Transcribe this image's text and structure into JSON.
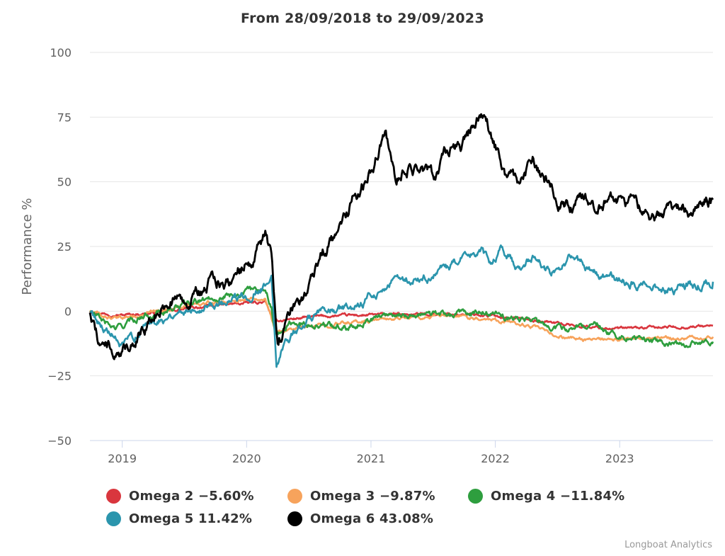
{
  "chart_data": {
    "type": "line",
    "title": "From 28/09/2018 to 29/09/2023",
    "xlabel": "",
    "ylabel": "Performance %",
    "ylim": [
      -50,
      100
    ],
    "yticks": [
      100,
      75,
      50,
      25,
      0,
      -25,
      -50
    ],
    "ytick_labels": [
      "100",
      "75",
      "50",
      "25",
      "0",
      "−25",
      "−50"
    ],
    "xlim": [
      2018.74,
      2023.75
    ],
    "xticks": [
      2019,
      2020,
      2021,
      2022,
      2023
    ],
    "xtick_labels": [
      "2019",
      "2020",
      "2021",
      "2022",
      "2023"
    ],
    "legend_position": "bottom",
    "series": [
      {
        "name": "Omega 2",
        "label": "Omega 2 −5.60%",
        "color": "#d9363e",
        "points": [
          [
            2018.74,
            0
          ],
          [
            2018.85,
            -0.8
          ],
          [
            2019.0,
            -1.5
          ],
          [
            2019.3,
            -0.5
          ],
          [
            2019.6,
            1.5
          ],
          [
            2019.9,
            2.8
          ],
          [
            2020.15,
            3.5
          ],
          [
            2020.22,
            -4
          ],
          [
            2020.35,
            -3
          ],
          [
            2020.6,
            -2
          ],
          [
            2020.9,
            -1.6
          ],
          [
            2021.2,
            -1.3
          ],
          [
            2021.5,
            -1.1
          ],
          [
            2021.9,
            -1.5
          ],
          [
            2022.15,
            -2.5
          ],
          [
            2022.4,
            -4
          ],
          [
            2022.7,
            -5.8
          ],
          [
            2023.0,
            -6.8
          ],
          [
            2023.3,
            -6.3
          ],
          [
            2023.6,
            -5.9
          ],
          [
            2023.75,
            -5.6
          ]
        ]
      },
      {
        "name": "Omega 3",
        "label": "Omega 3 −9.87%",
        "color": "#f7a35c",
        "points": [
          [
            2018.74,
            0
          ],
          [
            2018.85,
            -2
          ],
          [
            2018.95,
            -3
          ],
          [
            2019.2,
            -1
          ],
          [
            2019.5,
            2
          ],
          [
            2019.9,
            4
          ],
          [
            2020.15,
            5.5
          ],
          [
            2020.23,
            -8
          ],
          [
            2020.35,
            -7
          ],
          [
            2020.7,
            -5
          ],
          [
            2021.0,
            -3.5
          ],
          [
            2021.3,
            -2.5
          ],
          [
            2021.7,
            -2
          ],
          [
            2021.95,
            -2.8
          ],
          [
            2022.1,
            -4
          ],
          [
            2022.3,
            -6
          ],
          [
            2022.45,
            -9
          ],
          [
            2022.6,
            -10.5
          ],
          [
            2022.8,
            -11
          ],
          [
            2022.95,
            -11.5
          ],
          [
            2023.2,
            -10.5
          ],
          [
            2023.5,
            -10.5
          ],
          [
            2023.75,
            -9.9
          ]
        ]
      },
      {
        "name": "Omega 4",
        "label": "Omega 4 −11.84%",
        "color": "#2e9e3e",
        "points": [
          [
            2018.74,
            0
          ],
          [
            2018.85,
            -4
          ],
          [
            2018.95,
            -7
          ],
          [
            2019.15,
            -2
          ],
          [
            2019.4,
            1
          ],
          [
            2019.7,
            5
          ],
          [
            2019.95,
            7
          ],
          [
            2020.15,
            9
          ],
          [
            2020.2,
            2
          ],
          [
            2020.23,
            -9
          ],
          [
            2020.35,
            -5
          ],
          [
            2020.5,
            -5
          ],
          [
            2020.8,
            -6
          ],
          [
            2021.0,
            -3
          ],
          [
            2021.15,
            -1
          ],
          [
            2021.4,
            -1.5
          ],
          [
            2021.7,
            -1
          ],
          [
            2021.95,
            -0.5
          ],
          [
            2022.1,
            -3
          ],
          [
            2022.3,
            -3.5
          ],
          [
            2022.5,
            -7
          ],
          [
            2022.7,
            -6
          ],
          [
            2022.8,
            -4
          ],
          [
            2022.95,
            -9
          ],
          [
            2023.1,
            -10
          ],
          [
            2023.3,
            -12
          ],
          [
            2023.5,
            -12.8
          ],
          [
            2023.6,
            -13
          ],
          [
            2023.75,
            -11.8
          ]
        ]
      },
      {
        "name": "Omega 5",
        "label": "Omega 5 11.42%",
        "color": "#2b95ad",
        "points": [
          [
            2018.74,
            0
          ],
          [
            2018.85,
            -6
          ],
          [
            2019.0,
            -14
          ],
          [
            2019.2,
            -5
          ],
          [
            2019.4,
            -1
          ],
          [
            2019.6,
            2
          ],
          [
            2019.9,
            4
          ],
          [
            2020.15,
            10
          ],
          [
            2020.2,
            12
          ],
          [
            2020.24,
            -21
          ],
          [
            2020.3,
            -12
          ],
          [
            2020.5,
            -3
          ],
          [
            2020.7,
            0
          ],
          [
            2020.9,
            2
          ],
          [
            2021.0,
            6
          ],
          [
            2021.2,
            12
          ],
          [
            2021.4,
            12
          ],
          [
            2021.6,
            16
          ],
          [
            2021.75,
            20
          ],
          [
            2021.9,
            24
          ],
          [
            2021.95,
            18
          ],
          [
            2022.05,
            24
          ],
          [
            2022.2,
            16
          ],
          [
            2022.3,
            22
          ],
          [
            2022.45,
            14
          ],
          [
            2022.6,
            21
          ],
          [
            2022.8,
            15
          ],
          [
            2023.0,
            12
          ],
          [
            2023.2,
            10
          ],
          [
            2023.4,
            8
          ],
          [
            2023.6,
            10
          ],
          [
            2023.75,
            11.4
          ]
        ]
      },
      {
        "name": "Omega 6",
        "label": "Omega 6 43.08%",
        "color": "#000000",
        "points": [
          [
            2018.74,
            0
          ],
          [
            2018.8,
            -10
          ],
          [
            2018.9,
            -14
          ],
          [
            2018.97,
            -19
          ],
          [
            2019.1,
            -10
          ],
          [
            2019.25,
            -2
          ],
          [
            2019.4,
            5
          ],
          [
            2019.55,
            4
          ],
          [
            2019.7,
            10
          ],
          [
            2019.9,
            14
          ],
          [
            2020.05,
            20
          ],
          [
            2020.15,
            29
          ],
          [
            2020.2,
            20
          ],
          [
            2020.25,
            -15
          ],
          [
            2020.32,
            -2
          ],
          [
            2020.5,
            10
          ],
          [
            2020.6,
            22
          ],
          [
            2020.75,
            32
          ],
          [
            2020.85,
            42
          ],
          [
            2021.0,
            55
          ],
          [
            2021.12,
            69
          ],
          [
            2021.2,
            52
          ],
          [
            2021.3,
            56
          ],
          [
            2021.4,
            55
          ],
          [
            2021.5,
            52
          ],
          [
            2021.6,
            60
          ],
          [
            2021.75,
            65
          ],
          [
            2021.88,
            76
          ],
          [
            2021.95,
            70
          ],
          [
            2022.0,
            64
          ],
          [
            2022.1,
            52
          ],
          [
            2022.2,
            50
          ],
          [
            2022.3,
            57
          ],
          [
            2022.4,
            51
          ],
          [
            2022.5,
            43
          ],
          [
            2022.6,
            39
          ],
          [
            2022.7,
            45
          ],
          [
            2022.8,
            42
          ],
          [
            2022.95,
            43
          ],
          [
            2023.1,
            42
          ],
          [
            2023.2,
            40
          ],
          [
            2023.25,
            35
          ],
          [
            2023.4,
            38
          ],
          [
            2023.55,
            39
          ],
          [
            2023.7,
            45
          ],
          [
            2023.75,
            43.1
          ]
        ]
      }
    ]
  },
  "credits": "Longboat Analytics"
}
